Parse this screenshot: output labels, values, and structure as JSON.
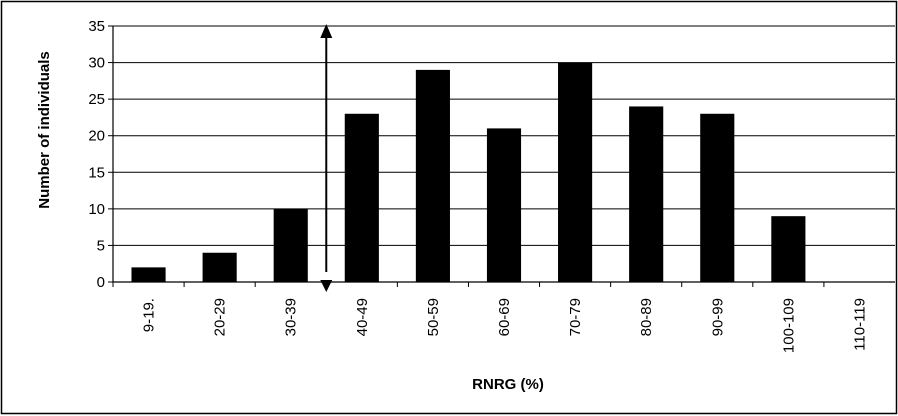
{
  "chart_data": {
    "type": "bar",
    "categories": [
      "9-19.",
      "20-29",
      "30-39",
      "40-49",
      "50-59",
      "60-69",
      "70-79",
      "80-89",
      "90-99",
      "100-109",
      "110-119"
    ],
    "values": [
      2,
      4,
      10,
      23,
      29,
      21,
      30,
      24,
      23,
      9,
      0
    ],
    "title": "",
    "xlabel": "RNRG (%)",
    "ylabel": "Number of individuals",
    "ylim": [
      0,
      35
    ],
    "yticks": [
      0,
      5,
      10,
      15,
      20,
      25,
      30,
      35
    ],
    "grid": true,
    "legend": "none",
    "bar_color": "#000000",
    "annotation": {
      "type": "double-headed vertical arrow",
      "x_between_categories": [
        "30-39",
        "40-49"
      ],
      "y_range": [
        0,
        35
      ]
    }
  }
}
